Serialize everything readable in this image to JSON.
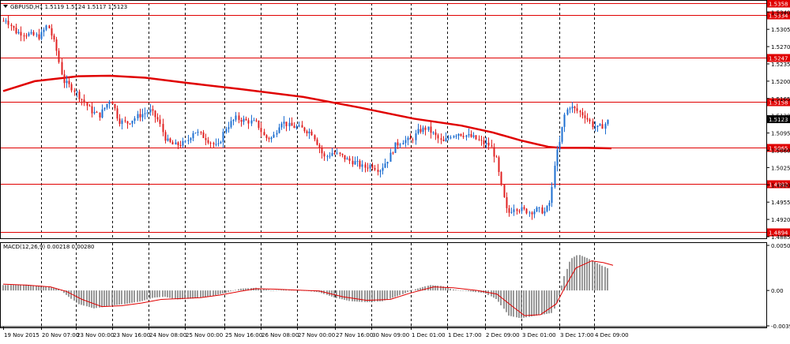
{
  "chart_data": {
    "type": "candlestick",
    "title": "GBPUSD,H1  1.5119 1.5124 1.5117 1.5123",
    "symbol": "GBPUSD,H1",
    "ohlc_header": [
      "1.5119",
      "1.5124",
      "1.5117",
      "1.5123"
    ],
    "price_axis": {
      "ylim": [
        1.4885,
        1.5358
      ],
      "tick_labels": [
        "1.5340",
        "1.5305",
        "1.5270",
        "1.5235",
        "1.5200",
        "1.5165",
        "1.5130",
        "1.5095",
        "1.5060",
        "1.5025",
        "1.4990",
        "1.4955",
        "1.4920",
        "1.4885"
      ],
      "ticks": [
        1.534,
        1.5305,
        1.527,
        1.5235,
        1.52,
        1.5165,
        1.513,
        1.5095,
        1.506,
        1.5025,
        1.499,
        1.4955,
        1.492,
        1.4885
      ]
    },
    "x_axis": {
      "tick_labels": [
        "19 Nov 2015",
        "20 Nov 07:00",
        "23 Nov 00:00",
        "23 Nov 16:00",
        "24 Nov 08:00",
        "25 Nov 00:00",
        "25 Nov 16:00",
        "26 Nov 08:00",
        "27 Nov 00:00",
        "27 Nov 16:00",
        "30 Nov 09:00",
        "1 Dec 01:00",
        "1 Dec 17:00",
        "2 Dec 09:00",
        "3 Dec 01:00",
        "3 Dec 17:00",
        "4 Dec 09:00"
      ]
    },
    "grid": "dashed-vertical",
    "horizontal_levels": [
      {
        "value": 1.5358,
        "label": "1.5358"
      },
      {
        "value": 1.5334,
        "label": "1.5334"
      },
      {
        "value": 1.5247,
        "label": "1.5247"
      },
      {
        "value": 1.5158,
        "label": "1.5158"
      },
      {
        "value": 1.5065,
        "label": "1.5065"
      },
      {
        "value": 1.4992,
        "label": "1.4992"
      },
      {
        "value": 1.4894,
        "label": "1.4894"
      }
    ],
    "current_price": {
      "value": 1.5123,
      "label": "1.5123"
    },
    "candle_path": [
      [
        0,
        1.529
      ],
      [
        5,
        1.533
      ],
      [
        20,
        1.53
      ],
      [
        35,
        1.5295
      ],
      [
        50,
        1.529
      ],
      [
        60,
        1.5315
      ],
      [
        70,
        1.527
      ],
      [
        80,
        1.52
      ],
      [
        92,
        1.5185
      ],
      [
        105,
        1.516
      ],
      [
        115,
        1.514
      ],
      [
        125,
        1.513
      ],
      [
        140,
        1.5165
      ],
      [
        150,
        1.512
      ],
      [
        160,
        1.5115
      ],
      [
        175,
        1.513
      ],
      [
        190,
        1.514
      ],
      [
        200,
        1.512
      ],
      [
        210,
        1.508
      ],
      [
        220,
        1.507
      ],
      [
        235,
        1.5075
      ],
      [
        245,
        1.51
      ],
      [
        260,
        1.5085
      ],
      [
        275,
        1.5065
      ],
      [
        285,
        1.5105
      ],
      [
        298,
        1.5125
      ],
      [
        310,
        1.512
      ],
      [
        325,
        1.5115
      ],
      [
        335,
        1.5085
      ],
      [
        345,
        1.5085
      ],
      [
        355,
        1.512
      ],
      [
        365,
        1.511
      ],
      [
        380,
        1.5105
      ],
      [
        395,
        1.5095
      ],
      [
        410,
        1.5045
      ],
      [
        420,
        1.5055
      ],
      [
        430,
        1.505
      ],
      [
        440,
        1.504
      ],
      [
        450,
        1.5035
      ],
      [
        460,
        1.5025
      ],
      [
        470,
        1.503
      ],
      [
        480,
        1.502
      ],
      [
        490,
        1.504
      ],
      [
        500,
        1.507
      ],
      [
        510,
        1.508
      ],
      [
        520,
        1.508
      ],
      [
        530,
        1.51
      ],
      [
        540,
        1.5105
      ],
      [
        550,
        1.509
      ],
      [
        560,
        1.5075
      ],
      [
        570,
        1.509
      ],
      [
        580,
        1.5095
      ],
      [
        590,
        1.509
      ],
      [
        600,
        1.5085
      ],
      [
        610,
        1.5075
      ],
      [
        620,
        1.507
      ],
      [
        628,
        1.504
      ],
      [
        635,
        1.498
      ],
      [
        642,
        1.493
      ],
      [
        650,
        1.4945
      ],
      [
        660,
        1.494
      ],
      [
        670,
        1.4935
      ],
      [
        680,
        1.494
      ],
      [
        690,
        1.4935
      ],
      [
        697,
        1.496
      ],
      [
        702,
        1.504
      ],
      [
        708,
        1.5075
      ],
      [
        714,
        1.513
      ],
      [
        720,
        1.515
      ],
      [
        730,
        1.514
      ],
      [
        740,
        1.513
      ],
      [
        750,
        1.511
      ],
      [
        756,
        1.5105
      ],
      [
        763,
        1.511
      ],
      [
        772,
        1.5123
      ]
    ],
    "moving_average": {
      "color": "#e00000",
      "points": [
        [
          0,
          1.518
        ],
        [
          40,
          1.52
        ],
        [
          95,
          1.521
        ],
        [
          135,
          1.5211
        ],
        [
          180,
          1.5207
        ],
        [
          230,
          1.5197
        ],
        [
          300,
          1.5184
        ],
        [
          380,
          1.5168
        ],
        [
          450,
          1.5147
        ],
        [
          520,
          1.5124
        ],
        [
          580,
          1.511
        ],
        [
          620,
          1.5096
        ],
        [
          655,
          1.508
        ],
        [
          690,
          1.5067
        ],
        [
          705,
          1.5065
        ],
        [
          740,
          1.5065
        ],
        [
          770,
          1.5064
        ]
      ]
    },
    "bull_color": "#1e6fd1",
    "bear_color": "#e02020",
    "macd": {
      "label": "MACD(12,26,9) 0.00218 0.00280",
      "ylim": [
        -0.00394,
        0.00502
      ],
      "tick_labels": [
        "0.00502",
        "0.00",
        "-0.00394"
      ],
      "ticks": [
        0.00502,
        0.0,
        -0.00394
      ],
      "histogram_path": [
        [
          0,
          0.0006
        ],
        [
          30,
          0.00065
        ],
        [
          55,
          0.0004
        ],
        [
          70,
          0.0002
        ],
        [
          80,
          -0.0005
        ],
        [
          95,
          -0.0015
        ],
        [
          115,
          -0.002
        ],
        [
          135,
          -0.0017
        ],
        [
          155,
          -0.0015
        ],
        [
          175,
          -0.0012
        ],
        [
          190,
          -0.0008
        ],
        [
          205,
          -0.0007
        ],
        [
          220,
          -0.001
        ],
        [
          240,
          -0.0009
        ],
        [
          260,
          -0.0007
        ],
        [
          280,
          -0.0003
        ],
        [
          300,
          0.0002
        ],
        [
          320,
          0.0003
        ],
        [
          340,
          0.0
        ],
        [
          360,
          0.0001
        ],
        [
          380,
          0.0
        ],
        [
          400,
          -0.0002
        ],
        [
          420,
          -0.0008
        ],
        [
          440,
          -0.0012
        ],
        [
          460,
          -0.0013
        ],
        [
          480,
          -0.0012
        ],
        [
          500,
          -0.0006
        ],
        [
          520,
          0.0001
        ],
        [
          540,
          0.0006
        ],
        [
          555,
          0.0005
        ],
        [
          570,
          0.0001
        ],
        [
          590,
          -0.0001
        ],
        [
          610,
          -0.0003
        ],
        [
          625,
          -0.001
        ],
        [
          640,
          -0.0028
        ],
        [
          655,
          -0.0031
        ],
        [
          675,
          -0.0028
        ],
        [
          695,
          -0.0025
        ],
        [
          702,
          -0.0012
        ],
        [
          710,
          0.0015
        ],
        [
          718,
          0.0035
        ],
        [
          728,
          0.004
        ],
        [
          740,
          0.0036
        ],
        [
          755,
          0.0029
        ],
        [
          772,
          0.00218
        ]
      ],
      "signal_path": [
        [
          0,
          0.0007
        ],
        [
          30,
          0.0006
        ],
        [
          60,
          0.0004
        ],
        [
          80,
          -0.0001
        ],
        [
          100,
          -0.001
        ],
        [
          125,
          -0.0018
        ],
        [
          150,
          -0.0017
        ],
        [
          175,
          -0.0014
        ],
        [
          200,
          -0.001
        ],
        [
          225,
          -0.0009
        ],
        [
          250,
          -0.0008
        ],
        [
          275,
          -0.0005
        ],
        [
          300,
          -0.0001
        ],
        [
          320,
          0.0002
        ],
        [
          345,
          0.00015
        ],
        [
          370,
          5e-05
        ],
        [
          400,
          -5e-05
        ],
        [
          430,
          -0.0007
        ],
        [
          460,
          -0.0011
        ],
        [
          490,
          -0.001
        ],
        [
          515,
          -0.0003
        ],
        [
          545,
          0.0004
        ],
        [
          570,
          0.0003
        ],
        [
          600,
          0.0
        ],
        [
          625,
          -0.0004
        ],
        [
          645,
          -0.0018
        ],
        [
          660,
          -0.0028
        ],
        [
          680,
          -0.0027
        ],
        [
          700,
          -0.0015
        ],
        [
          712,
          0.0005
        ],
        [
          725,
          0.0025
        ],
        [
          745,
          0.0033
        ],
        [
          760,
          0.0031
        ],
        [
          772,
          0.0028
        ]
      ],
      "signal_color": "#e00000",
      "histogram_color": "#808080"
    }
  }
}
